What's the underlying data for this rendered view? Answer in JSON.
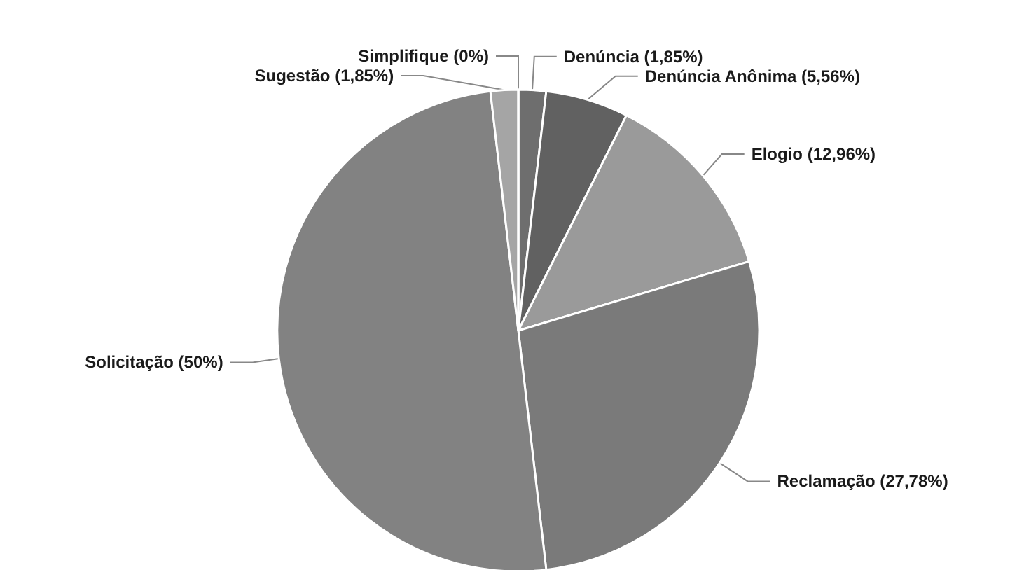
{
  "chart_data": {
    "type": "pie",
    "categories": [
      "Denúncia (1,85%)",
      "Denúncia Anônima (5,56%)",
      "Elogio (12,96%)",
      "Reclamação (27,78%)",
      "Solicitação (50%)",
      "Sugestão (1,85%)",
      "Simplifique (0%)"
    ],
    "values": [
      1.85,
      5.56,
      12.96,
      27.78,
      50,
      1.85,
      0
    ],
    "colors": [
      "#6e6e6e",
      "#616161",
      "#9a9a9a",
      "#7a7a7a",
      "#828282",
      "#a5a5a5",
      "#8c8c8c"
    ],
    "legend": false
  }
}
